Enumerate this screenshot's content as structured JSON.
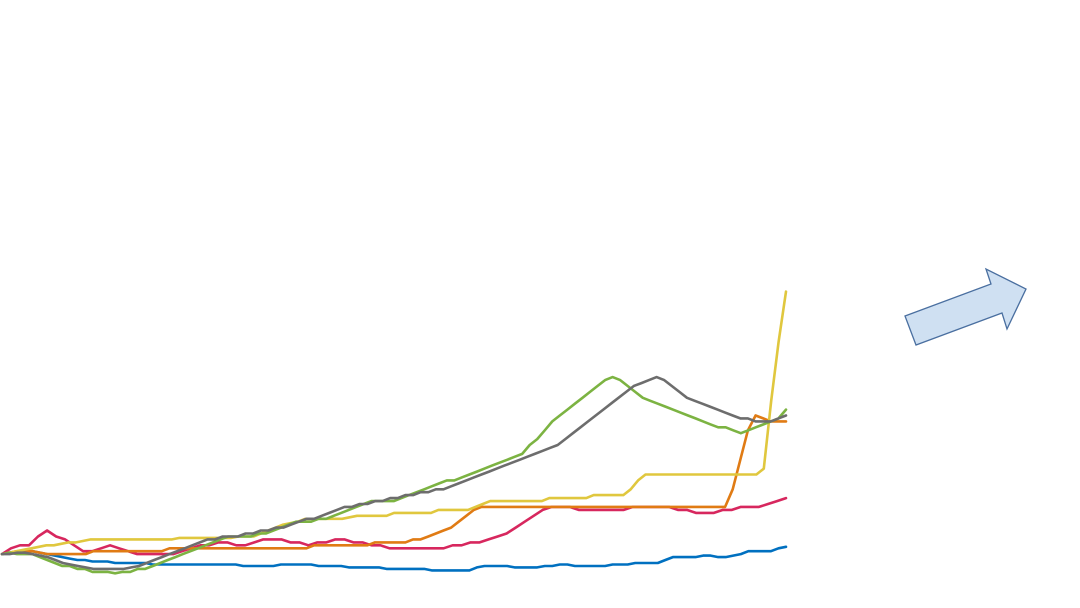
{
  "chart_data": {
    "type": "line",
    "title": "",
    "xlabel": "",
    "ylabel": "",
    "axes_visible": false,
    "grid": false,
    "legend": "none",
    "xlim": [
      0,
      104
    ],
    "ylim": [
      0,
      100
    ],
    "x_start": 0,
    "x_step": 1,
    "series": [
      {
        "name": "blue",
        "color": "#0070C0",
        "values": [
          3,
          3.5,
          3.5,
          4,
          4,
          3.5,
          3,
          2.5,
          2,
          1.5,
          1,
          1,
          0.5,
          0.5,
          0.5,
          0,
          0,
          0,
          0,
          0,
          -0.5,
          -0.5,
          -0.5,
          -0.5,
          -0.5,
          -0.5,
          -0.5,
          -0.5,
          -0.5,
          -0.5,
          -0.5,
          -0.5,
          -1,
          -1,
          -1,
          -1,
          -1,
          -0.5,
          -0.5,
          -0.5,
          -0.5,
          -0.5,
          -1,
          -1,
          -1,
          -1,
          -1.5,
          -1.5,
          -1.5,
          -1.5,
          -1.5,
          -2,
          -2,
          -2,
          -2,
          -2,
          -2,
          -2.5,
          -2.5,
          -2.5,
          -2.5,
          -2.5,
          -2.5,
          -1.5,
          -1,
          -1,
          -1,
          -1,
          -1.5,
          -1.5,
          -1.5,
          -1.5,
          -1,
          -1,
          -0.5,
          -0.5,
          -1,
          -1,
          -1,
          -1,
          -1,
          -0.5,
          -0.5,
          -0.5,
          0,
          0,
          0,
          0,
          1,
          2,
          2,
          2,
          2,
          2.5,
          2.5,
          2,
          2,
          2.5,
          3,
          4,
          4,
          4,
          4,
          5,
          5.5
        ]
      },
      {
        "name": "crimson",
        "color": "#D7275E",
        "values": [
          3,
          5,
          6,
          6,
          9,
          11,
          9,
          8,
          6,
          4,
          4,
          5,
          6,
          5,
          4,
          3,
          3,
          3,
          3,
          3,
          4,
          5,
          6,
          6,
          7,
          7,
          6,
          6,
          7,
          8,
          8,
          8,
          7,
          7,
          6,
          7,
          7,
          8,
          8,
          7,
          7,
          6,
          6,
          5,
          5,
          5,
          5,
          5,
          5,
          5,
          6,
          6,
          7,
          7,
          8,
          9,
          10,
          12,
          14,
          16,
          18,
          19,
          19,
          19,
          18,
          18,
          18,
          18,
          18,
          18,
          19,
          19,
          19,
          19,
          19,
          18,
          18,
          17,
          17,
          17,
          18,
          18,
          19,
          19,
          19,
          20,
          21,
          22
        ]
      },
      {
        "name": "orange",
        "color": "#E07B14",
        "values": [
          3,
          3.5,
          4,
          4,
          4,
          3.5,
          3,
          3,
          3,
          3,
          3,
          3,
          4,
          4,
          4,
          4,
          4,
          4,
          4,
          4,
          4,
          4,
          5,
          5,
          5,
          5,
          5,
          5,
          5,
          5,
          5,
          5,
          5,
          5,
          5,
          5,
          5,
          5,
          5,
          5,
          5,
          6,
          6,
          6,
          6,
          6,
          6,
          6,
          6,
          7,
          7,
          7,
          7,
          7,
          8,
          8,
          9,
          10,
          11,
          12,
          14,
          16,
          18,
          19,
          19,
          19,
          19,
          19,
          19,
          19,
          19,
          19,
          19,
          19,
          19,
          19,
          19,
          19,
          19,
          19,
          19,
          19,
          19,
          19,
          19,
          19,
          19,
          19,
          19,
          19,
          19,
          19,
          19,
          19,
          19,
          19,
          25,
          35,
          45,
          50,
          49,
          48,
          48,
          48
        ]
      },
      {
        "name": "yellow",
        "color": "#E0C73E",
        "values": [
          3,
          3.5,
          4,
          4.5,
          5,
          5.5,
          6,
          6,
          6.5,
          7,
          7,
          7.5,
          8,
          8,
          8,
          8,
          8,
          8,
          8,
          8,
          8,
          8,
          8,
          8,
          8.5,
          8.5,
          8.5,
          8.5,
          8.5,
          8.5,
          8.5,
          8.5,
          9,
          9,
          9,
          10,
          11,
          12,
          13,
          13.5,
          14,
          15,
          15,
          15,
          15,
          15,
          15,
          15.5,
          16,
          16,
          16,
          16,
          16,
          17,
          17,
          17,
          17,
          17,
          17,
          18,
          18,
          18,
          18,
          18,
          19,
          20,
          21,
          21,
          21,
          21,
          21,
          21,
          21,
          21,
          22,
          22,
          22,
          22,
          22,
          22,
          23,
          23,
          23,
          23,
          23,
          25,
          28,
          30,
          30,
          30,
          30,
          30,
          30,
          30,
          30,
          30,
          30,
          30,
          30,
          30,
          30,
          30,
          30,
          32,
          55,
          75,
          92
        ]
      },
      {
        "name": "green",
        "color": "#7CB342",
        "values": [
          3,
          3.5,
          3,
          3,
          3,
          2,
          1,
          0,
          -1,
          -1,
          -2,
          -2,
          -3,
          -3,
          -3,
          -3.5,
          -3,
          -3,
          -2,
          -2,
          -1,
          0,
          1,
          2,
          3,
          4,
          5,
          6,
          7,
          8,
          9,
          9,
          9,
          9,
          10,
          10,
          11,
          12,
          13,
          14,
          14,
          14,
          15,
          15,
          16,
          17,
          18,
          19,
          20,
          21,
          21,
          21,
          21,
          22,
          23,
          24,
          25,
          26,
          27,
          28,
          28,
          29,
          30,
          31,
          32,
          33,
          34,
          35,
          36,
          37,
          40,
          42,
          45,
          48,
          50,
          52,
          54,
          56,
          58,
          60,
          62,
          63,
          62,
          60,
          58,
          56,
          55,
          54,
          53,
          52,
          51,
          50,
          49,
          48,
          47,
          46,
          46,
          45,
          44,
          45,
          46,
          47,
          48,
          49,
          52
        ]
      },
      {
        "name": "gray",
        "color": "#6D6D6D",
        "values": [
          3,
          3,
          3.5,
          3.5,
          3,
          2.5,
          2,
          1,
          0,
          -0.5,
          -1,
          -1.5,
          -2,
          -2,
          -2,
          -2,
          -2,
          -1.5,
          -1,
          0,
          1,
          2,
          3,
          4,
          5,
          6,
          7,
          8,
          8,
          9,
          9,
          9,
          10,
          10,
          11,
          11,
          12,
          12,
          13,
          14,
          15,
          15,
          16,
          17,
          18,
          19,
          19,
          20,
          20,
          21,
          21,
          22,
          22,
          23,
          23,
          24,
          24,
          25,
          25,
          26,
          27,
          28,
          29,
          30,
          31,
          32,
          33,
          34,
          35,
          36,
          37,
          38,
          39,
          40,
          42,
          44,
          46,
          48,
          50,
          52,
          54,
          56,
          58,
          60,
          61,
          62,
          63,
          62,
          60,
          58,
          56,
          55,
          54,
          53,
          52,
          51,
          50,
          49,
          49,
          48,
          48,
          48,
          49,
          50
        ]
      }
    ]
  }
}
